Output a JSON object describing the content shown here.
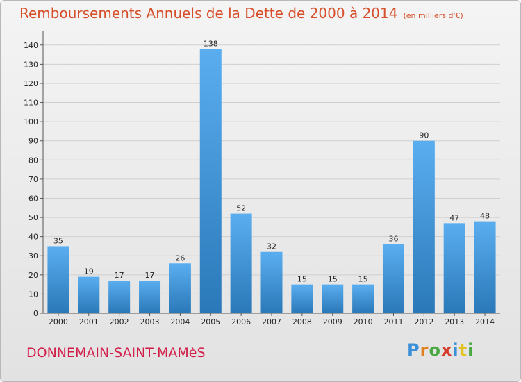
{
  "title": "Remboursements Annuels de la Dette de 2000 à 2014",
  "unit": "(en milliers d'€)",
  "commune": "DONNEMAIN-SAINT-MAMèS",
  "logo_text": "Proxiti",
  "colors": {
    "title": "#d64f2a",
    "commune": "#d21f4a",
    "bar_top": "#5aaef0",
    "bar_bottom": "#2a78b8",
    "grid": "#cfcfcf"
  },
  "chart_data": {
    "type": "bar",
    "categories": [
      "2000",
      "2001",
      "2002",
      "2003",
      "2004",
      "2005",
      "2006",
      "2007",
      "2008",
      "2009",
      "2010",
      "2011",
      "2012",
      "2013",
      "2014"
    ],
    "values": [
      35,
      19,
      17,
      17,
      26,
      138,
      52,
      32,
      15,
      15,
      15,
      36,
      90,
      47,
      48
    ],
    "ylim": [
      0,
      145
    ],
    "yticks": [
      0,
      10,
      20,
      30,
      40,
      50,
      60,
      70,
      80,
      90,
      100,
      110,
      120,
      130,
      140
    ],
    "grid": true,
    "legend": "none"
  }
}
